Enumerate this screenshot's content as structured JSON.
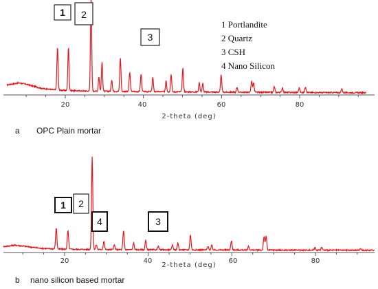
{
  "colors": {
    "trace": "#e8141b",
    "axis": "#555555",
    "box": "#333333"
  },
  "chart_data": [
    {
      "type": "line",
      "panel_label": "a",
      "caption": "OPC Plain mortar",
      "xlabel": "2-theta (deg)",
      "xlim": [
        5,
        97
      ],
      "xticks": [
        "20",
        "40",
        "60",
        "80"
      ],
      "legend": [
        "1 Portlandite",
        "2 Quartz",
        "3 CSH",
        "4 Nano Silicon"
      ],
      "markers": [
        "1",
        "2",
        "3"
      ],
      "baseline": [
        [
          5,
          0.2
        ],
        [
          8,
          0.25
        ],
        [
          10,
          0.22
        ],
        [
          14,
          0.12
        ],
        [
          18,
          0.08
        ],
        [
          25,
          0.06
        ],
        [
          35,
          0.05
        ],
        [
          50,
          0.04
        ],
        [
          70,
          0.03
        ],
        [
          97,
          0.02
        ]
      ],
      "peaks": [
        [
          18.0,
          0.45
        ],
        [
          20.8,
          0.45
        ],
        [
          26.6,
          1.0
        ],
        [
          28.6,
          0.15
        ],
        [
          29.4,
          0.3
        ],
        [
          31.9,
          0.12
        ],
        [
          34.1,
          0.35
        ],
        [
          36.5,
          0.2
        ],
        [
          39.4,
          0.18
        ],
        [
          42.4,
          0.15
        ],
        [
          45.8,
          0.12
        ],
        [
          47.1,
          0.18
        ],
        [
          50.1,
          0.25
        ],
        [
          54.3,
          0.1
        ],
        [
          55.2,
          0.09
        ],
        [
          59.9,
          0.18
        ],
        [
          64.0,
          0.05
        ],
        [
          67.7,
          0.12
        ],
        [
          68.2,
          0.1
        ],
        [
          73.5,
          0.06
        ],
        [
          75.6,
          0.05
        ],
        [
          79.9,
          0.05
        ],
        [
          81.5,
          0.06
        ],
        [
          90.8,
          0.04
        ]
      ]
    },
    {
      "type": "line",
      "panel_label": "b",
      "caption": "nano silicon based mortar",
      "xlabel": "2-theta (deg)",
      "xlim": [
        5,
        97
      ],
      "xticks": [
        "20",
        "40",
        "60",
        "80"
      ],
      "markers": [
        "1",
        "2",
        "4",
        "3"
      ],
      "baseline": [
        [
          5,
          0.1
        ],
        [
          8,
          0.14
        ],
        [
          10,
          0.12
        ],
        [
          14,
          0.07
        ],
        [
          18,
          0.05
        ],
        [
          25,
          0.04
        ],
        [
          35,
          0.035
        ],
        [
          50,
          0.03
        ],
        [
          70,
          0.025
        ],
        [
          97,
          0.02
        ]
      ],
      "peaks": [
        [
          18.0,
          0.23
        ],
        [
          20.8,
          0.2
        ],
        [
          26.6,
          1.0
        ],
        [
          27.6,
          0.05
        ],
        [
          29.4,
          0.09
        ],
        [
          31.9,
          0.05
        ],
        [
          34.1,
          0.2
        ],
        [
          36.5,
          0.07
        ],
        [
          39.4,
          0.1
        ],
        [
          42.4,
          0.04
        ],
        [
          45.8,
          0.05
        ],
        [
          47.1,
          0.07
        ],
        [
          50.1,
          0.16
        ],
        [
          54.3,
          0.04
        ],
        [
          55.2,
          0.05
        ],
        [
          59.9,
          0.1
        ],
        [
          64.0,
          0.04
        ],
        [
          67.7,
          0.15
        ],
        [
          68.2,
          0.15
        ],
        [
          79.9,
          0.03
        ],
        [
          81.5,
          0.03
        ],
        [
          90.8,
          0.02
        ]
      ]
    }
  ]
}
